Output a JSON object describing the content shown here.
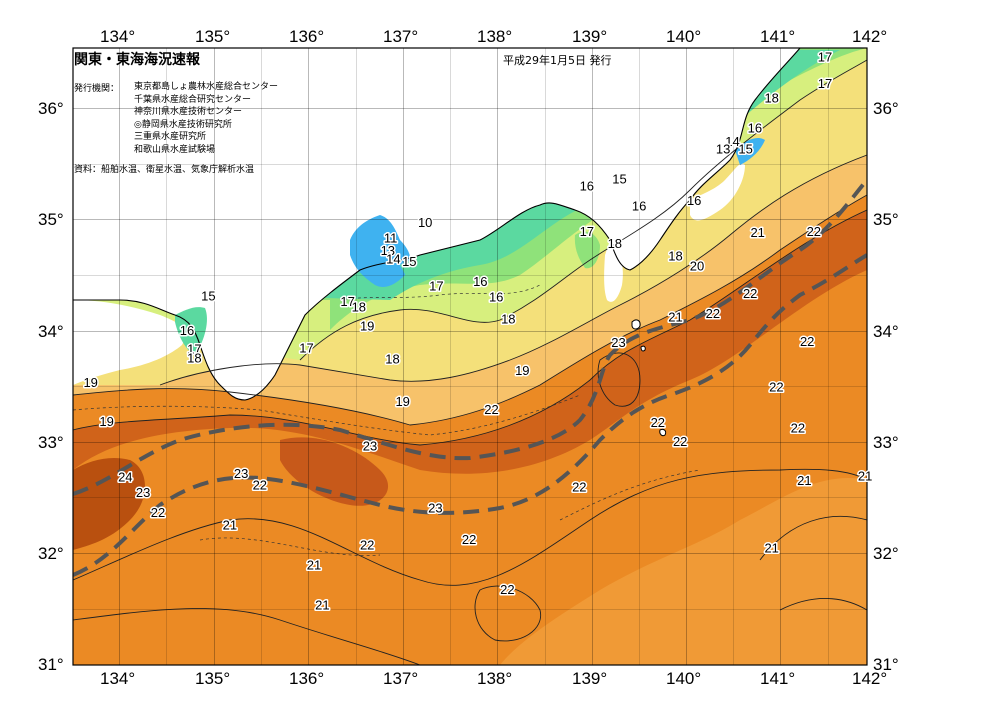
{
  "header": {
    "title": "関東・東海海況速報",
    "issue_date": "平成29年1月5日 発行",
    "issuer_label": "発行機関：",
    "issuers": [
      "東京都島しょ農林水産総合センター",
      "千葉県水産総合研究センター",
      "神奈川県水産技術センター",
      "◎静岡県水産技術研究所",
      "三重県水産研究所",
      "和歌山県水産試験場"
    ],
    "source": "資料：船舶水温、衛星水温、気象庁解析水温"
  },
  "axes": {
    "lon_labels": [
      "134°",
      "135°",
      "136°",
      "137°",
      "138°",
      "139°",
      "140°",
      "141°",
      "142°"
    ],
    "lat_labels": [
      "36°",
      "35°",
      "34°",
      "33°",
      "32°",
      "31°"
    ]
  },
  "contour_labels": [
    {
      "text": "17",
      "lon": 141.55,
      "lat": 36.43
    },
    {
      "text": "17",
      "lon": 141.55,
      "lat": 36.19
    },
    {
      "text": "18",
      "lon": 140.98,
      "lat": 36.06
    },
    {
      "text": "16",
      "lon": 140.8,
      "lat": 35.79
    },
    {
      "text": "14",
      "lon": 140.56,
      "lat": 35.67
    },
    {
      "text": "13",
      "lon": 140.46,
      "lat": 35.6
    },
    {
      "text": "15",
      "lon": 140.7,
      "lat": 35.6
    },
    {
      "text": "16",
      "lon": 139.0,
      "lat": 35.27
    },
    {
      "text": "15",
      "lon": 139.35,
      "lat": 35.33
    },
    {
      "text": "16",
      "lon": 139.56,
      "lat": 35.09
    },
    {
      "text": "16",
      "lon": 140.15,
      "lat": 35.14
    },
    {
      "text": "17",
      "lon": 139.0,
      "lat": 34.86
    },
    {
      "text": "18",
      "lon": 139.3,
      "lat": 34.75
    },
    {
      "text": "18",
      "lon": 139.95,
      "lat": 34.64
    },
    {
      "text": "20",
      "lon": 140.18,
      "lat": 34.55
    },
    {
      "text": "21",
      "lon": 140.83,
      "lat": 34.85
    },
    {
      "text": "22",
      "lon": 141.43,
      "lat": 34.86
    },
    {
      "text": "22",
      "lon": 140.75,
      "lat": 34.3
    },
    {
      "text": "21",
      "lon": 139.95,
      "lat": 34.09
    },
    {
      "text": "22",
      "lon": 140.35,
      "lat": 34.12
    },
    {
      "text": "23",
      "lon": 139.34,
      "lat": 33.86
    },
    {
      "text": "22",
      "lon": 141.36,
      "lat": 33.87
    },
    {
      "text": "22",
      "lon": 141.03,
      "lat": 33.46
    },
    {
      "text": "22",
      "lon": 139.76,
      "lat": 33.14
    },
    {
      "text": "22",
      "lon": 140.0,
      "lat": 32.97
    },
    {
      "text": "22",
      "lon": 141.26,
      "lat": 33.09
    },
    {
      "text": "21",
      "lon": 141.33,
      "lat": 32.62
    },
    {
      "text": "21",
      "lon": 141.98,
      "lat": 32.66
    },
    {
      "text": "21",
      "lon": 140.98,
      "lat": 32.01
    },
    {
      "text": "10",
      "lon": 137.27,
      "lat": 34.94
    },
    {
      "text": "11",
      "lon": 136.9,
      "lat": 34.8
    },
    {
      "text": "13",
      "lon": 136.87,
      "lat": 34.69
    },
    {
      "text": "14",
      "lon": 136.93,
      "lat": 34.61
    },
    {
      "text": "15",
      "lon": 137.1,
      "lat": 34.59
    },
    {
      "text": "17",
      "lon": 137.39,
      "lat": 34.37
    },
    {
      "text": "16",
      "lon": 137.86,
      "lat": 34.41
    },
    {
      "text": "16",
      "lon": 138.03,
      "lat": 34.27
    },
    {
      "text": "18",
      "lon": 138.16,
      "lat": 34.07
    },
    {
      "text": "17",
      "lon": 136.44,
      "lat": 34.23
    },
    {
      "text": "18",
      "lon": 136.56,
      "lat": 34.18
    },
    {
      "text": "19",
      "lon": 136.65,
      "lat": 34.01
    },
    {
      "text": "18",
      "lon": 136.92,
      "lat": 33.71
    },
    {
      "text": "17",
      "lon": 136.0,
      "lat": 33.81
    },
    {
      "text": "19",
      "lon": 138.31,
      "lat": 33.61
    },
    {
      "text": "19",
      "lon": 137.03,
      "lat": 33.33
    },
    {
      "text": "22",
      "lon": 137.98,
      "lat": 33.26
    },
    {
      "text": "23",
      "lon": 136.68,
      "lat": 32.93
    },
    {
      "text": "23",
      "lon": 135.3,
      "lat": 32.68
    },
    {
      "text": "22",
      "lon": 135.5,
      "lat": 32.58
    },
    {
      "text": "23",
      "lon": 137.38,
      "lat": 32.37
    },
    {
      "text": "22",
      "lon": 138.92,
      "lat": 32.56
    },
    {
      "text": "22",
      "lon": 137.74,
      "lat": 32.09
    },
    {
      "text": "22",
      "lon": 136.65,
      "lat": 32.04
    },
    {
      "text": "21",
      "lon": 135.18,
      "lat": 32.22
    },
    {
      "text": "21",
      "lon": 136.08,
      "lat": 31.86
    },
    {
      "text": "21",
      "lon": 136.17,
      "lat": 31.5
    },
    {
      "text": "22",
      "lon": 138.15,
      "lat": 31.64
    },
    {
      "text": "24",
      "lon": 134.06,
      "lat": 32.65
    },
    {
      "text": "23",
      "lon": 134.25,
      "lat": 32.51
    },
    {
      "text": "22",
      "lon": 134.41,
      "lat": 32.33
    },
    {
      "text": "19",
      "lon": 133.69,
      "lat": 33.5
    },
    {
      "text": "19",
      "lon": 133.86,
      "lat": 33.15
    },
    {
      "text": "15",
      "lon": 134.95,
      "lat": 34.28
    },
    {
      "text": "16",
      "lon": 134.72,
      "lat": 33.97
    },
    {
      "text": "17",
      "lon": 134.8,
      "lat": 33.8
    },
    {
      "text": "18",
      "lon": 134.8,
      "lat": 33.72
    }
  ],
  "legend_colors": {
    "ocean_warm_deep": "#c95810",
    "ocean_warm": "#e67f1e",
    "ocean_22": "#f2a03c",
    "ocean_20": "#f7c26a",
    "ocean_18": "#f4e07a",
    "ocean_17": "#d7ef7e",
    "ocean_16": "#8fe27a",
    "ocean_15": "#5bd9a0",
    "ocean_cold": "#3fb2f0",
    "land": "#ffffff",
    "kuroshio_axis": "#555555"
  }
}
